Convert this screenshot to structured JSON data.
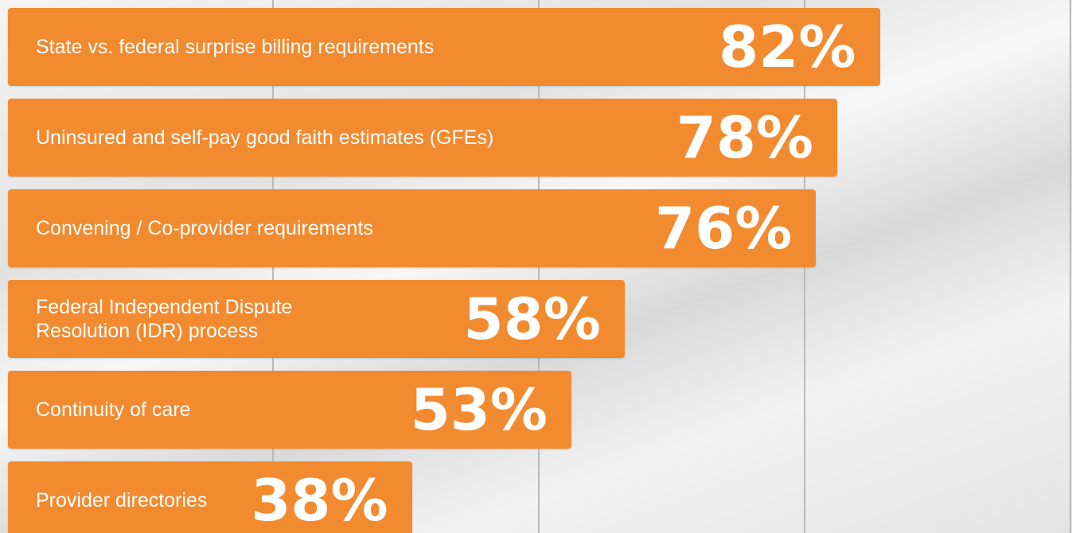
{
  "chart_data": {
    "type": "bar",
    "orientation": "horizontal",
    "categories": [
      "State vs. federal surprise billing requirements",
      "Uninsured and self-pay good faith estimates (GFEs)",
      "Convening / Co-provider requirements",
      "Federal Independent Dispute\nResolution (IDR) process",
      "Continuity of care",
      "Provider directories"
    ],
    "values": [
      82,
      78,
      76,
      58,
      53,
      38
    ],
    "value_labels": [
      "82%",
      "78%",
      "76%",
      "58%",
      "53%",
      "38%"
    ],
    "color": "#f28a30",
    "xlim": [
      0,
      100
    ],
    "xticks": [
      25,
      50,
      75,
      100
    ],
    "grid": true
  }
}
